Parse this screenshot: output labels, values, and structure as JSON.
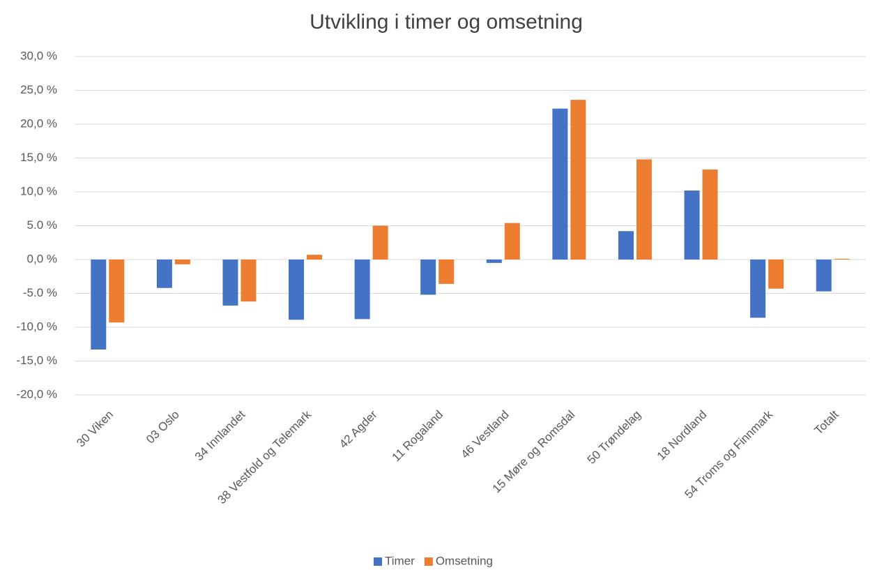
{
  "chart_data": {
    "type": "bar",
    "title": "Utvikling i timer og omsetning",
    "categories": [
      "30 Viken",
      "03 Oslo",
      "34 Innlandet",
      "38 Vestfold og Telemark",
      "42 Agder",
      "11 Rogaland",
      "46 Vestland",
      "15 Møre og Romsdal",
      "50 Trøndelag",
      "18 Nordland",
      "54 Troms og Finnmark",
      "Totalt"
    ],
    "series": [
      {
        "name": "Timer",
        "color": "#4472c4",
        "values": [
          -13.3,
          -4.2,
          -6.8,
          -8.9,
          -8.8,
          -5.2,
          -0.5,
          22.3,
          4.2,
          10.2,
          -8.6,
          -4.7
        ]
      },
      {
        "name": "Omsetning",
        "color": "#ed7d31",
        "values": [
          -9.3,
          -0.7,
          -6.2,
          0.7,
          5.0,
          -3.6,
          5.4,
          23.6,
          14.8,
          13.3,
          -4.3,
          0.1
        ]
      }
    ],
    "ylim": [
      -20,
      30
    ],
    "yticks": [
      {
        "value": -20,
        "label": "-20,0 %"
      },
      {
        "value": -15,
        "label": "-15,0 %"
      },
      {
        "value": -10,
        "label": "-10,0 %"
      },
      {
        "value": -5,
        "label": "-5.0 %"
      },
      {
        "value": 0,
        "label": "0,0 %"
      },
      {
        "value": 5,
        "label": "5.0 %"
      },
      {
        "value": 10,
        "label": "10,0 %"
      },
      {
        "value": 15,
        "label": "15,0 %"
      },
      {
        "value": 20,
        "label": "20,0 %"
      },
      {
        "value": 25,
        "label": "25,0 %"
      },
      {
        "value": 30,
        "label": "30,0 %"
      }
    ],
    "grid": true,
    "legend": "bottom"
  }
}
